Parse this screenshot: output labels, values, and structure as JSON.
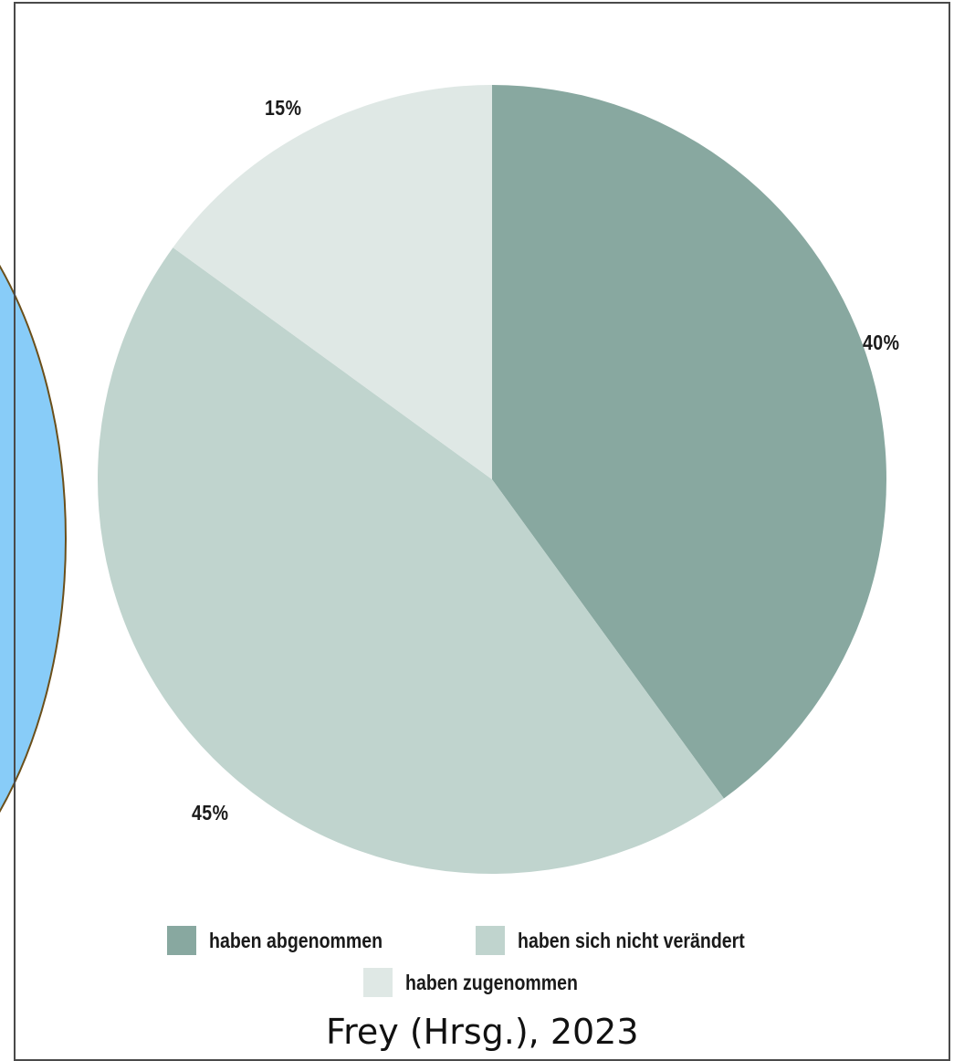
{
  "chart_data": {
    "type": "pie",
    "title": "",
    "slices": [
      {
        "label": "haben abgenommen",
        "value": 40,
        "value_label": "40%",
        "color": "#88a8a0"
      },
      {
        "label": "haben sich nicht verändert",
        "value": 45,
        "value_label": "45%",
        "color": "#c0d4ce"
      },
      {
        "label": "haben zugenommen",
        "value": 15,
        "value_label": "15%",
        "color": "#dfe8e5"
      }
    ],
    "start": "12 o'clock",
    "direction": "clockwise",
    "legend": {
      "placement": "bottom"
    }
  },
  "overlay": {
    "fill": "#88ccf8",
    "stroke": "#6b4f1a"
  },
  "source_text": "Frey (Hrsg.), 2023"
}
